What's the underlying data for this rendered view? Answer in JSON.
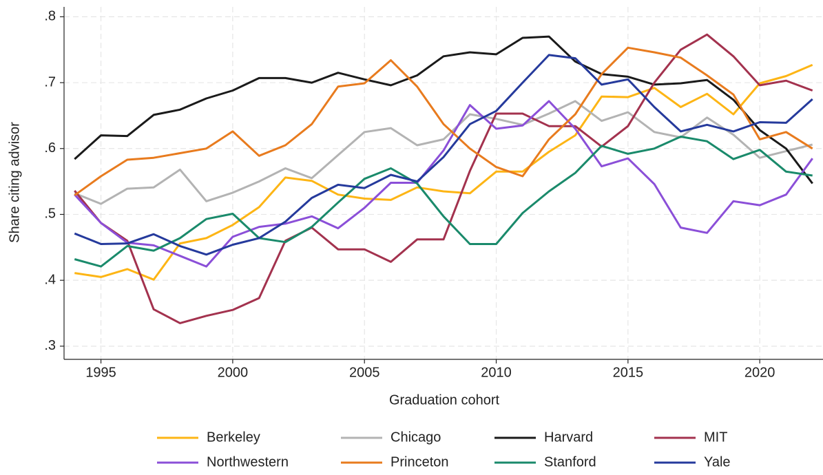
{
  "chart_data": {
    "type": "line",
    "x_label": "Graduation cohort",
    "y_label": "Share citing advisor",
    "x": [
      1994,
      1995,
      1996,
      1997,
      1998,
      1999,
      2000,
      2001,
      2002,
      2003,
      2004,
      2005,
      2006,
      2007,
      2008,
      2009,
      2010,
      2011,
      2012,
      2013,
      2014,
      2015,
      2016,
      2017,
      2018,
      2019,
      2020,
      2021,
      2022
    ],
    "xlim": [
      1993.6,
      2022.4
    ],
    "xticks": [
      1995,
      2000,
      2005,
      2010,
      2015,
      2020
    ],
    "ylim": [
      0.28,
      0.815
    ],
    "yticks": [
      {
        "value": 0.3,
        "label": ".3"
      },
      {
        "value": 0.4,
        "label": ".4"
      },
      {
        "value": 0.5,
        "label": ".5"
      },
      {
        "value": 0.6,
        "label": ".6"
      },
      {
        "value": 0.7,
        "label": ".7"
      },
      {
        "value": 0.8,
        "label": ".8"
      }
    ],
    "grid": true,
    "legend": "bottom",
    "series": [
      {
        "name": "Berkeley",
        "color": "#fdb515",
        "values": [
          0.411,
          0.405,
          0.417,
          0.401,
          0.456,
          0.464,
          0.484,
          0.511,
          0.556,
          0.551,
          0.53,
          0.524,
          0.522,
          0.541,
          0.535,
          0.532,
          0.565,
          0.565,
          0.595,
          0.62,
          0.679,
          0.678,
          0.692,
          0.663,
          0.683,
          0.652,
          0.699,
          0.71,
          0.727
        ]
      },
      {
        "name": "Chicago",
        "color": "#b3b3b3",
        "values": [
          0.532,
          0.516,
          0.539,
          0.541,
          0.568,
          0.52,
          0.533,
          0.55,
          0.57,
          0.555,
          0.59,
          0.625,
          0.631,
          0.605,
          0.614,
          0.652,
          0.645,
          0.636,
          0.653,
          0.672,
          0.642,
          0.655,
          0.625,
          0.617,
          0.647,
          0.621,
          0.586,
          0.596,
          0.606
        ]
      },
      {
        "name": "Harvard",
        "color": "#1a1a1a",
        "values": [
          0.584,
          0.62,
          0.619,
          0.651,
          0.659,
          0.676,
          0.688,
          0.707,
          0.707,
          0.7,
          0.715,
          0.705,
          0.696,
          0.711,
          0.74,
          0.746,
          0.743,
          0.768,
          0.77,
          0.732,
          0.713,
          0.709,
          0.697,
          0.699,
          0.704,
          0.674,
          0.628,
          0.6,
          0.547
        ]
      },
      {
        "name": "MIT",
        "color": "#a3324e",
        "values": [
          0.536,
          0.487,
          0.46,
          0.356,
          0.335,
          0.346,
          0.355,
          0.373,
          0.46,
          0.48,
          0.447,
          0.447,
          0.428,
          0.462,
          0.462,
          0.566,
          0.653,
          0.653,
          0.634,
          0.634,
          0.603,
          0.634,
          0.7,
          0.75,
          0.773,
          0.74,
          0.696,
          0.703,
          0.688
        ]
      },
      {
        "name": "Northwestern",
        "color": "#8b4fd8",
        "values": [
          0.53,
          0.487,
          0.457,
          0.453,
          0.437,
          0.421,
          0.466,
          0.481,
          0.486,
          0.497,
          0.479,
          0.51,
          0.548,
          0.548,
          0.597,
          0.666,
          0.63,
          0.635,
          0.672,
          0.63,
          0.573,
          0.585,
          0.546,
          0.48,
          0.472,
          0.52,
          0.514,
          0.53,
          0.585
        ]
      },
      {
        "name": "Princeton",
        "color": "#e87b1e",
        "values": [
          0.529,
          0.558,
          0.583,
          0.586,
          0.593,
          0.6,
          0.626,
          0.589,
          0.605,
          0.637,
          0.694,
          0.699,
          0.734,
          0.694,
          0.637,
          0.6,
          0.572,
          0.558,
          0.614,
          0.652,
          0.713,
          0.753,
          0.746,
          0.738,
          0.711,
          0.682,
          0.614,
          0.625,
          0.6
        ]
      },
      {
        "name": "Stanford",
        "color": "#1a8a6b",
        "values": [
          0.432,
          0.421,
          0.452,
          0.445,
          0.464,
          0.493,
          0.501,
          0.464,
          0.458,
          0.481,
          0.518,
          0.554,
          0.57,
          0.547,
          0.497,
          0.455,
          0.455,
          0.502,
          0.535,
          0.563,
          0.604,
          0.592,
          0.6,
          0.618,
          0.611,
          0.584,
          0.598,
          0.565,
          0.559
        ]
      },
      {
        "name": "Yale",
        "color": "#253a9c",
        "values": [
          0.471,
          0.455,
          0.456,
          0.47,
          0.452,
          0.439,
          0.454,
          0.464,
          0.489,
          0.525,
          0.545,
          0.54,
          0.56,
          0.55,
          0.587,
          0.637,
          0.657,
          0.7,
          0.742,
          0.737,
          0.697,
          0.705,
          0.663,
          0.626,
          0.636,
          0.626,
          0.64,
          0.639,
          0.675
        ]
      }
    ]
  }
}
